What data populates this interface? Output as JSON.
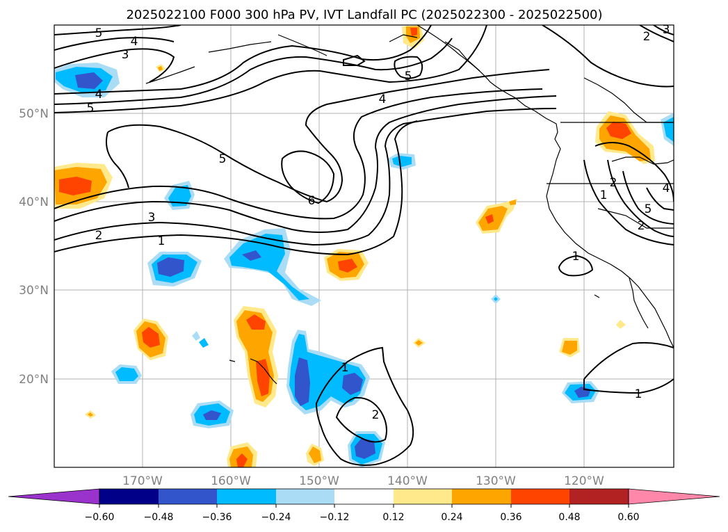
{
  "title": "2025022100 F000 300 hPa PV, IVT Landfall PC (2025022300 - 2025022500)",
  "map": {
    "lon_ticks": [
      "170°W",
      "160°W",
      "150°W",
      "140°W",
      "130°W",
      "120°W"
    ],
    "lat_ticks": [
      "50°N",
      "40°N",
      "30°N",
      "20°N"
    ],
    "contour_labels": [
      "5",
      "4",
      "3",
      "5",
      "4",
      "5",
      "2",
      "3",
      "5",
      "4",
      "6",
      "3",
      "2",
      "1",
      "1",
      "2",
      "1",
      "2",
      "2",
      "4",
      "5",
      "1",
      "1"
    ]
  },
  "colorbar": {
    "ticks": [
      "−0.60",
      "−0.48",
      "−0.36",
      "−0.24",
      "−0.12",
      "0.12",
      "0.24",
      "0.36",
      "0.48",
      "0.60"
    ],
    "colors": [
      "#9933cc",
      "#000088",
      "#3355cc",
      "#00bbff",
      "#aaddf5",
      "#ffffff",
      "#ffe98a",
      "#ffa500",
      "#ff4400",
      "#b22222",
      "#ff88aa"
    ]
  }
}
